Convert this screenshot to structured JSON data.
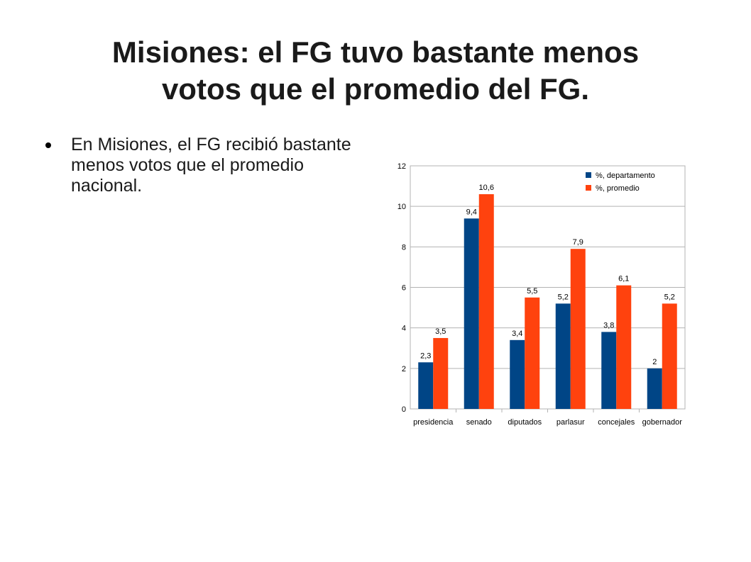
{
  "slide": {
    "title_line1": "Misiones: el FG tuvo bastante menos",
    "title_line2": "votos que el promedio del FG.",
    "bullets": [
      "En Misiones, el FG recibió bastante menos votos que el promedio nacional."
    ]
  },
  "chart_data": {
    "type": "bar",
    "categories": [
      "presidencia",
      "senado",
      "diputados",
      "parlasur",
      "concejales",
      "gobernador"
    ],
    "series": [
      {
        "name": "%, departamento",
        "color": "#004586",
        "values": [
          2.3,
          9.4,
          3.4,
          5.2,
          3.8,
          2
        ],
        "labels": [
          "2,3",
          "9,4",
          "3,4",
          "5,2",
          "3,8",
          "2"
        ]
      },
      {
        "name": "%, promedio",
        "color": "#ff420e",
        "values": [
          3.5,
          10.6,
          5.5,
          7.9,
          6.1,
          5.2
        ],
        "labels": [
          "3,5",
          "10,6",
          "5,5",
          "7,9",
          "6,1",
          "5,2"
        ]
      }
    ],
    "y_ticks": [
      0,
      2,
      4,
      6,
      8,
      10,
      12
    ],
    "ylim": [
      0,
      12
    ],
    "grid": true,
    "legend": "top-right",
    "title": "",
    "xlabel": "",
    "ylabel": ""
  }
}
